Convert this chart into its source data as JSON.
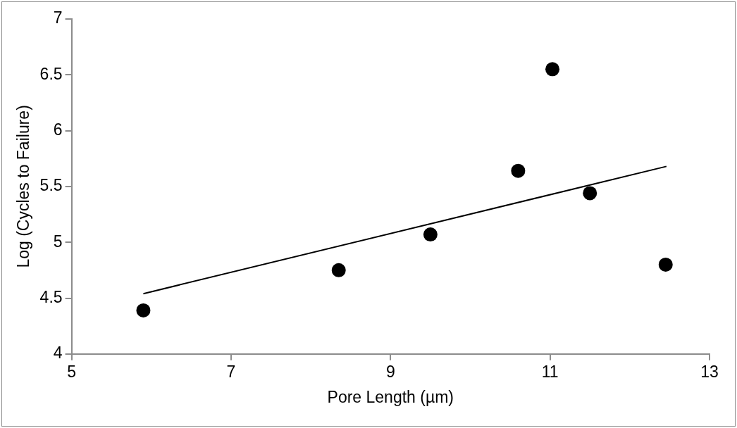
{
  "chart_data": {
    "type": "scatter",
    "xlabel": "Pore Length (µm)",
    "ylabel": "Log (Cycles to Failure)",
    "xlim": [
      5,
      13
    ],
    "xticks": [
      5,
      7,
      9,
      11,
      13
    ],
    "ylim": [
      4,
      7
    ],
    "yticks": [
      4,
      4.5,
      5,
      5.5,
      6,
      6.5,
      7
    ],
    "marker": "circle",
    "series": [
      {
        "color": "#000000",
        "x": [
          5.9,
          8.35,
          9.5,
          10.6,
          11.03,
          11.5,
          12.45
        ],
        "values": [
          4.39,
          4.75,
          5.07,
          5.64,
          6.55,
          5.44,
          4.8
        ]
      },
      {
        "type": "line",
        "color": "#000000",
        "line_style": "solid",
        "marker": "none",
        "x": [
          5.9,
          12.46
        ],
        "values": [
          4.54,
          5.68
        ]
      }
    ]
  }
}
